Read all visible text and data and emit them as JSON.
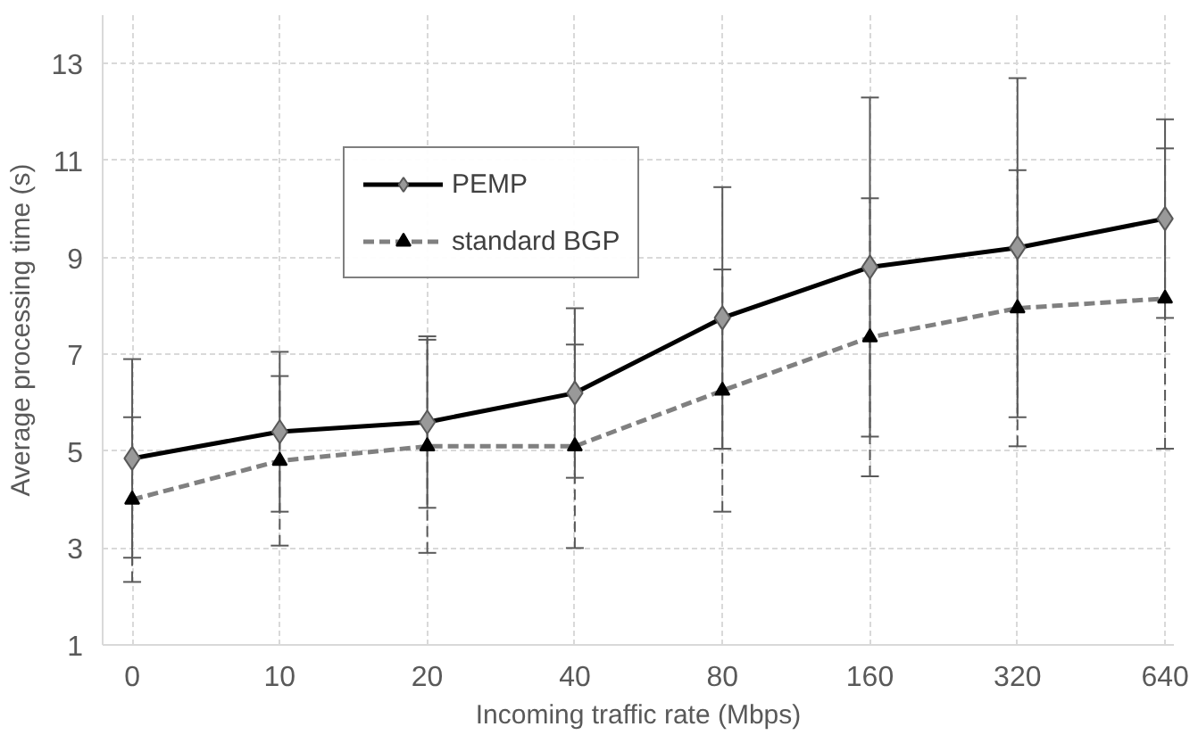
{
  "chart_data": {
    "type": "line",
    "xlabel": "Incoming traffic rate (Mbps)",
    "ylabel": "Average processing time (s)",
    "categories": [
      "0",
      "10",
      "20",
      "40",
      "80",
      "160",
      "320",
      "640"
    ],
    "series": [
      {
        "name": "PEMP",
        "color": "#000000",
        "marker": "diamond",
        "line_style": "solid",
        "values": [
          4.85,
          5.4,
          5.6,
          6.2,
          7.75,
          8.8,
          9.2,
          9.8
        ],
        "errors": [
          2.05,
          1.65,
          1.77,
          1.75,
          2.7,
          3.5,
          3.5,
          2.05
        ]
      },
      {
        "name": "standard BGP",
        "color": "#808080",
        "marker": "triangle",
        "line_style": "dashed",
        "values": [
          4.0,
          4.8,
          5.1,
          5.1,
          6.25,
          7.35,
          7.95,
          8.15
        ],
        "errors": [
          1.7,
          1.75,
          2.2,
          2.1,
          2.5,
          2.87,
          2.85,
          3.1
        ]
      }
    ],
    "ylim": [
      1,
      14
    ],
    "yticks": [
      1,
      3,
      5,
      7,
      9,
      11,
      13
    ],
    "grid": true,
    "legend": "top left"
  }
}
